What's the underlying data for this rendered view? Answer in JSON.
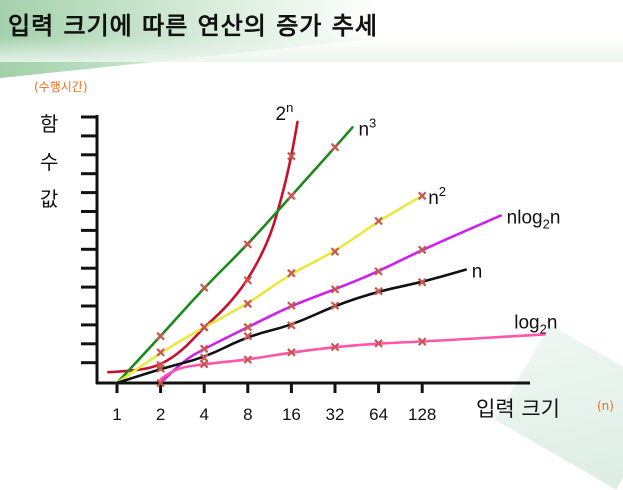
{
  "title": "입력 크기에 따른 연산의 증가 추세",
  "chart_data": {
    "type": "line",
    "title": "입력 크기에 따른 연산의 증가 추세",
    "ylabel_unit": "(수행시간)",
    "ylabel_chars": [
      "함",
      "수",
      "값"
    ],
    "xlabel": "입력 크기",
    "xlabel_unit": "(n)",
    "x_tick_labels": [
      "1",
      "2",
      "4",
      "8",
      "16",
      "32",
      "64",
      "128"
    ],
    "x_scale": "log2",
    "ylim": [
      0,
      15
    ],
    "y_tick_count": 14,
    "y_unit_note": "values in approximate y-axis tick units (no numeric labels)",
    "series": [
      {
        "name": "2^n",
        "label_base": "2",
        "label_sup": "n",
        "label_sub": "",
        "label_tail": "",
        "color": "#c8102e",
        "curve": [
          [
            -0.2,
            0.6
          ],
          [
            0.5,
            0.7
          ],
          [
            1,
            1.0
          ],
          [
            1.5,
            1.8
          ],
          [
            2,
            3.1
          ],
          [
            2.5,
            4.2
          ],
          [
            3,
            5.7
          ],
          [
            3.5,
            8.0
          ],
          [
            3.8,
            10.5
          ],
          [
            4,
            12.6
          ],
          [
            4.14,
            14.5
          ]
        ],
        "marks": [
          [
            1,
            1.0
          ],
          [
            2,
            3.1
          ],
          [
            3,
            5.7
          ],
          [
            4,
            12.6
          ]
        ]
      },
      {
        "name": "n^3",
        "label_base": "n",
        "label_sup": "3",
        "label_sub": "",
        "label_tail": "",
        "color": "#1a8a1a",
        "curve": [
          [
            0,
            0
          ],
          [
            1,
            2.6
          ],
          [
            2,
            5.3
          ],
          [
            3,
            7.7
          ],
          [
            4,
            10.4
          ],
          [
            5,
            13.1
          ],
          [
            5.4,
            14.2
          ]
        ],
        "marks": [
          [
            1,
            2.6
          ],
          [
            2,
            5.3
          ],
          [
            3,
            7.7
          ],
          [
            4,
            10.4
          ],
          [
            5,
            13.1
          ]
        ]
      },
      {
        "name": "n^2",
        "label_base": "n",
        "label_sup": "2",
        "label_sub": "",
        "label_tail": "",
        "color": "#e8e840",
        "curve": [
          [
            0,
            0
          ],
          [
            1,
            1.7
          ],
          [
            2,
            3.1
          ],
          [
            3,
            4.4
          ],
          [
            4,
            6.1
          ],
          [
            5,
            7.3
          ],
          [
            6,
            9.0
          ],
          [
            7,
            10.4
          ]
        ],
        "marks": [
          [
            1,
            1.7
          ],
          [
            2,
            3.1
          ],
          [
            3,
            4.4
          ],
          [
            4,
            6.1
          ],
          [
            5,
            7.3
          ],
          [
            6,
            9.0
          ],
          [
            7,
            10.4
          ]
        ]
      },
      {
        "name": "nlog2n",
        "label_base": "nlog",
        "label_sup": "",
        "label_sub": "2",
        "label_tail": "n",
        "color": "#cc22ee",
        "curve": [
          [
            1,
            0
          ],
          [
            1.5,
            1.2
          ],
          [
            2,
            1.9
          ],
          [
            3,
            3.1
          ],
          [
            4,
            4.3
          ],
          [
            5,
            5.2
          ],
          [
            6,
            6.2
          ],
          [
            7,
            7.4
          ],
          [
            8.8,
            9.3
          ]
        ],
        "marks": [
          [
            1,
            0
          ],
          [
            2,
            1.9
          ],
          [
            3,
            3.1
          ],
          [
            4,
            4.3
          ],
          [
            5,
            5.2
          ],
          [
            6,
            6.2
          ],
          [
            7,
            7.4
          ]
        ]
      },
      {
        "name": "n",
        "label_base": "n",
        "label_sup": "",
        "label_sub": "",
        "label_tail": "",
        "color": "#111111",
        "curve": [
          [
            0,
            0
          ],
          [
            1,
            0.8
          ],
          [
            2,
            1.4
          ],
          [
            3,
            2.6
          ],
          [
            4,
            3.2
          ],
          [
            5,
            4.3
          ],
          [
            6,
            5.1
          ],
          [
            7,
            5.6
          ],
          [
            8,
            6.3
          ]
        ],
        "marks": [
          [
            1,
            0.8
          ],
          [
            2,
            1.4
          ],
          [
            3,
            2.6
          ],
          [
            4,
            3.2
          ],
          [
            5,
            4.3
          ],
          [
            6,
            5.1
          ],
          [
            7,
            5.6
          ]
        ]
      },
      {
        "name": "log2n",
        "label_base": "log",
        "label_sup": "",
        "label_sub": "2",
        "label_tail": "n",
        "color": "#ff55aa",
        "curve": [
          [
            1,
            0.2
          ],
          [
            1.3,
            0.8
          ],
          [
            2,
            1.05
          ],
          [
            3,
            1.3
          ],
          [
            4,
            1.7
          ],
          [
            5,
            2.0
          ],
          [
            6,
            2.2
          ],
          [
            7,
            2.3
          ],
          [
            9.8,
            2.7
          ]
        ],
        "marks": [
          [
            2,
            1.05
          ],
          [
            3,
            1.3
          ],
          [
            4,
            1.7
          ],
          [
            5,
            2.0
          ],
          [
            6,
            2.2
          ],
          [
            7,
            2.3
          ]
        ]
      }
    ],
    "mark_color": "#c8574f"
  }
}
